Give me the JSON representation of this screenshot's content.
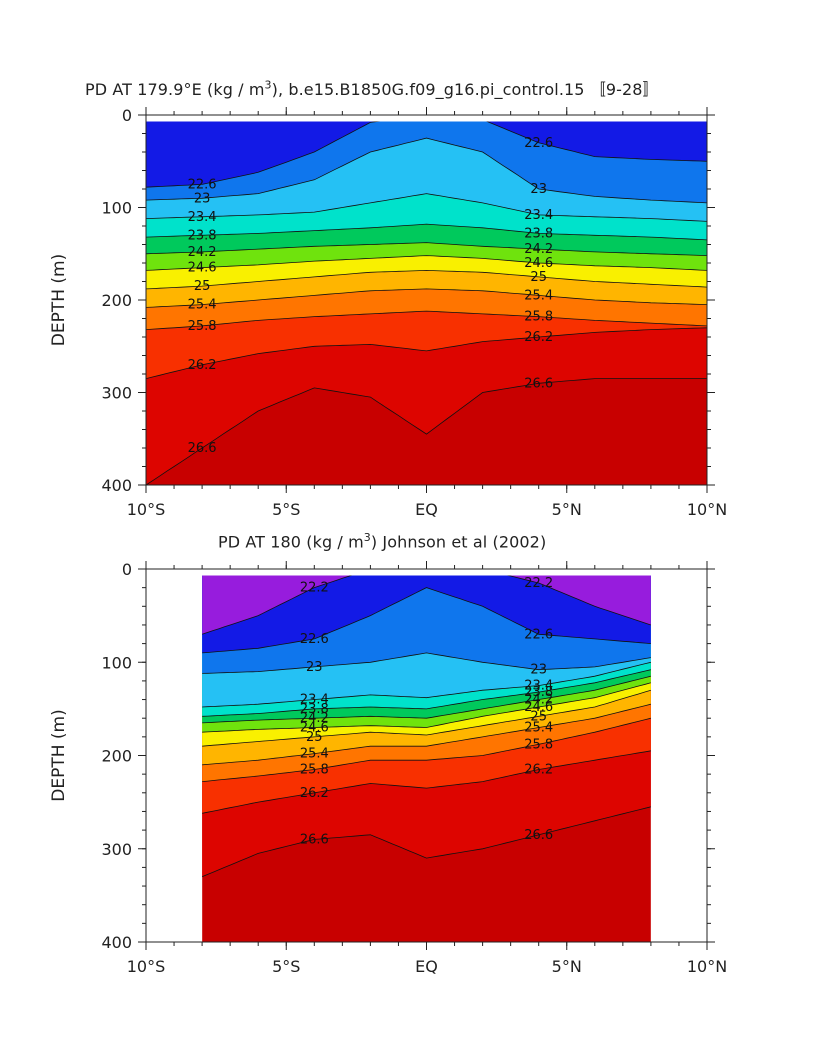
{
  "chart_data": [
    {
      "type": "contour",
      "title": "PD AT 179.9°E (kg / m",
      "title_sup": "3",
      "title_rest": "), b.e15.B1850G.f09_g16.pi_control.15 〚9-28〛",
      "ylabel": "DEPTH (m)",
      "xlim": [
        -10,
        10
      ],
      "ylim": [
        400,
        0
      ],
      "x_ticks": [
        "10°S",
        "5°S",
        "EQ",
        "5°N",
        "10°N"
      ],
      "y_ticks": [
        "0",
        "100",
        "200",
        "300",
        "400"
      ],
      "data_extent_x": [
        -10,
        10
      ],
      "contour_levels": [
        22.2,
        22.4,
        22.6,
        22.8,
        23.0,
        23.2,
        23.4,
        23.6,
        23.8,
        24.0,
        24.2,
        24.4,
        24.6,
        24.8,
        25.0,
        25.2,
        25.4,
        25.6,
        25.8,
        26.0,
        26.2,
        26.4,
        26.6,
        26.8
      ],
      "contour_labels": [
        "22.6",
        "23",
        "23.4",
        "23.8",
        "24.2",
        "24.6",
        "25",
        "25.4",
        "25.8",
        "26.2",
        "26.6",
        "23",
        "23.4",
        "23.8",
        "24.2",
        "24.6",
        "25",
        "25.4",
        "25.8",
        "26.2",
        "26.6",
        "22.6",
        "23.4",
        "23.8",
        "24.2",
        "24.6",
        "25",
        "25.4",
        "25.8",
        "26.2",
        "26.6"
      ],
      "isopycnal_depths": {
        "lat": [
          -10,
          -8,
          -6,
          -4,
          -2,
          0,
          2,
          4,
          6,
          8,
          10
        ],
        "22.6": [
          78,
          75,
          62,
          40,
          8,
          0,
          5,
          30,
          45,
          48,
          50
        ],
        "23.0": [
          92,
          90,
          85,
          70,
          40,
          25,
          40,
          80,
          88,
          92,
          95
        ],
        "23.4": [
          112,
          110,
          108,
          105,
          95,
          85,
          95,
          108,
          110,
          112,
          115
        ],
        "23.8": [
          132,
          130,
          128,
          125,
          122,
          118,
          122,
          128,
          130,
          132,
          135
        ],
        "24.2": [
          150,
          148,
          145,
          142,
          140,
          138,
          142,
          145,
          148,
          150,
          152
        ],
        "24.6": [
          168,
          165,
          162,
          158,
          155,
          152,
          155,
          160,
          163,
          165,
          168
        ],
        "25.0": [
          188,
          185,
          180,
          175,
          170,
          168,
          170,
          175,
          180,
          183,
          186
        ],
        "25.4": [
          208,
          205,
          200,
          195,
          190,
          188,
          190,
          195,
          200,
          203,
          205
        ],
        "25.8": [
          232,
          228,
          222,
          218,
          215,
          212,
          215,
          218,
          222,
          225,
          228
        ],
        "26.2": [
          285,
          270,
          258,
          250,
          248,
          255,
          245,
          240,
          235,
          232,
          230
        ],
        "26.6": [
          400,
          360,
          320,
          295,
          305,
          345,
          300,
          290,
          285,
          285,
          285
        ]
      }
    },
    {
      "type": "contour",
      "title": "PD AT 180 (kg / m",
      "title_sup": "3",
      "title_rest": ") Johnson et al (2002)",
      "ylabel": "DEPTH (m)",
      "xlim": [
        -10,
        10
      ],
      "ylim": [
        400,
        0
      ],
      "x_ticks": [
        "10°S",
        "5°S",
        "EQ",
        "5°N",
        "10°N"
      ],
      "y_ticks": [
        "0",
        "100",
        "200",
        "300",
        "400"
      ],
      "data_extent_x": [
        -8,
        8
      ],
      "contour_levels": [
        22.2,
        22.4,
        22.6,
        22.8,
        23.0,
        23.2,
        23.4,
        23.6,
        23.8,
        24.0,
        24.2,
        24.4,
        24.6,
        24.8,
        25.0,
        25.2,
        25.4,
        25.6,
        25.8,
        26.0,
        26.2,
        26.4,
        26.6,
        26.8
      ],
      "contour_labels": [
        "22.2",
        "22.6",
        "23",
        "23.4",
        "23.8",
        "24.2",
        "24.6",
        "25",
        "25.4",
        "25.8",
        "26.2",
        "26.6",
        "22.2",
        "22.6",
        "23",
        "23.4",
        "23.8",
        "24.2",
        "24.6",
        "25",
        "25.4",
        "25.8",
        "26.2",
        "26.6"
      ],
      "isopycnal_depths": {
        "lat": [
          -8,
          -6,
          -4,
          -2,
          0,
          2,
          4,
          6,
          8
        ],
        "22.2": [
          70,
          50,
          20,
          0,
          0,
          0,
          15,
          40,
          60
        ],
        "22.6": [
          90,
          85,
          75,
          50,
          20,
          40,
          70,
          75,
          80
        ],
        "23.0": [
          112,
          110,
          105,
          100,
          90,
          100,
          108,
          105,
          95
        ],
        "23.4": [
          148,
          145,
          140,
          135,
          138,
          130,
          125,
          115,
          100
        ],
        "23.8": [
          158,
          155,
          150,
          148,
          150,
          140,
          132,
          122,
          108
        ],
        "24.2": [
          165,
          162,
          160,
          158,
          160,
          150,
          140,
          130,
          115
        ],
        "24.6": [
          175,
          172,
          170,
          168,
          170,
          158,
          148,
          138,
          122
        ],
        "25.0": [
          190,
          185,
          180,
          175,
          178,
          168,
          158,
          148,
          130
        ],
        "25.4": [
          210,
          205,
          198,
          190,
          190,
          180,
          170,
          160,
          145
        ],
        "25.8": [
          228,
          222,
          215,
          205,
          205,
          200,
          188,
          175,
          160
        ],
        "26.2": [
          262,
          250,
          240,
          230,
          235,
          228,
          215,
          205,
          195
        ],
        "26.6": [
          330,
          305,
          290,
          285,
          310,
          300,
          285,
          270,
          255
        ]
      }
    }
  ]
}
